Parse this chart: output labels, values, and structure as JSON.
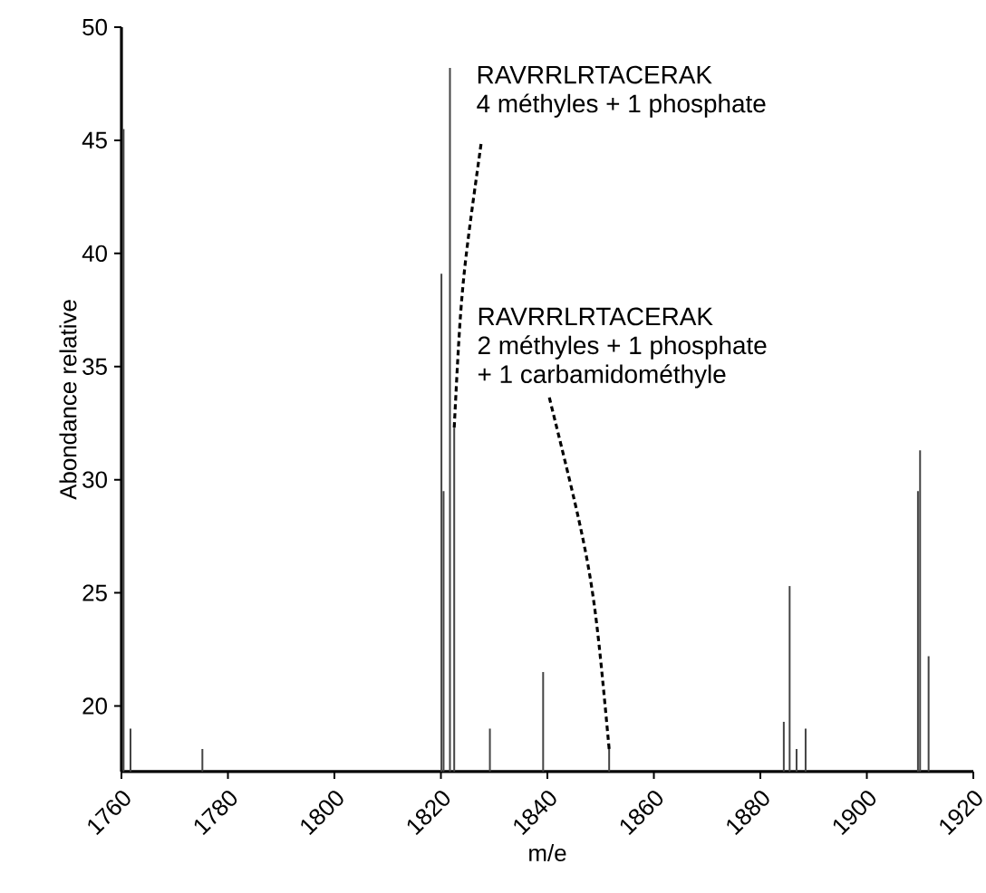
{
  "chart_data": {
    "type": "bar",
    "xlabel": "m/e",
    "ylabel": "Abondance relative",
    "color": "#444444",
    "x": [
      1760.4,
      1761.7,
      1775.2,
      1820.1,
      1820.5,
      1821.7,
      1822.5,
      1829.2,
      1839.2,
      1851.6,
      1884.4,
      1885.5,
      1886.8,
      1888.5,
      1909.6,
      1910.0,
      1911.6
    ],
    "values": [
      45.5,
      19.0,
      18.1,
      39.1,
      29.5,
      48.2,
      32.3,
      19.0,
      21.5,
      18.1,
      19.3,
      25.3,
      18.1,
      19.0,
      29.5,
      31.3,
      22.2
    ],
    "xlim": [
      1760,
      1920
    ],
    "ylim": [
      17.1,
      50
    ],
    "xticks": [
      1760,
      1780,
      1800,
      1820,
      1840,
      1860,
      1880,
      1900,
      1920
    ],
    "yticks": [
      20,
      25,
      30,
      35,
      40,
      45,
      50
    ],
    "grid": false,
    "annotations": [
      {
        "text": "RAVRRLRTACERAK\n4 méthyles + 1 phosphate",
        "x": 1822.5,
        "y": 32.3
      },
      {
        "text": "RAVRRLRTACERAK\n2 méthyles + 1 phosphate\n+ 1 carbamidométhyle",
        "x": 1851.6,
        "y": 18.1
      }
    ]
  }
}
